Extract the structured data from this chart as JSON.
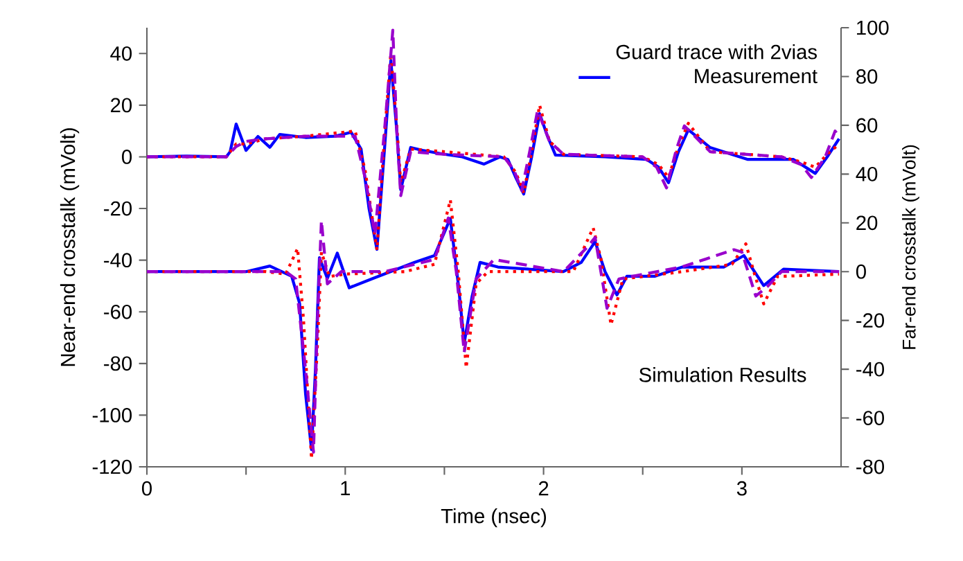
{
  "chart_data": {
    "type": "line",
    "xlabel": "Time (nsec)",
    "ylabel": "Near-end crosstalk (mVolt)",
    "y2label": "Far-end crosstalk (mVolt)",
    "legend_title": "Guard trace with 2vias",
    "legend": "top right",
    "marker": "none",
    "annotations": [
      "Simulation Results"
    ],
    "xlim": [
      0,
      3.5
    ],
    "xticks": [
      0,
      {
        "value": 0.5,
        "label": null
      },
      1,
      {
        "value": 1.5,
        "label": null
      },
      2,
      {
        "value": 2.5,
        "label": null
      },
      3
    ],
    "ylim": [
      -120,
      50
    ],
    "yticks": [
      -120,
      -100,
      -80,
      -60,
      -40,
      -20,
      0,
      20,
      40
    ],
    "y2lim": [
      -80,
      100
    ],
    "y2ticks": [
      -80,
      -60,
      -40,
      -20,
      0,
      20,
      40,
      60,
      80,
      100
    ],
    "series": [
      {
        "name": "Measurement",
        "color": "#0000ff",
        "line_style": "solid",
        "axis": "y",
        "x": [
          0,
          0.2,
          0.4,
          0.42,
          0.45,
          0.5,
          0.56,
          0.62,
          0.67,
          0.8,
          0.95,
          1.03,
          1.08,
          1.12,
          1.16,
          1.2,
          1.23,
          1.26,
          1.28,
          1.33,
          1.39,
          1.5,
          1.59,
          1.7,
          1.78,
          1.82,
          1.86,
          1.9,
          1.94,
          1.98,
          2.02,
          2.06,
          2.31,
          2.52,
          2.58,
          2.63,
          2.68,
          2.73,
          2.84,
          3.03,
          3.26,
          3.37,
          3.43,
          3.49
        ],
        "values": [
          0,
          0.3,
          0,
          2,
          12.7,
          2.5,
          7.9,
          3.7,
          8.7,
          7.5,
          8,
          9.5,
          3,
          -20,
          -35.8,
          5,
          37.3,
          10,
          -12.7,
          3.6,
          2.5,
          1,
          0,
          -2.8,
          0,
          -1,
          -8,
          -14.4,
          0,
          16.7,
          8,
          0.7,
          0,
          -1,
          -4,
          -10,
          2,
          10.5,
          3.6,
          -1,
          -1,
          -6.4,
          0,
          7
        ]
      },
      {
        "color": "#ff0000",
        "line_style": "dotted",
        "axis": "y",
        "x": [
          0,
          0.4,
          0.45,
          0.5,
          0.6,
          0.8,
          1.05,
          1.1,
          1.16,
          1.2,
          1.23,
          1.26,
          1.28,
          1.33,
          1.5,
          1.8,
          1.86,
          1.9,
          1.94,
          1.98,
          2.03,
          2.1,
          2.5,
          2.58,
          2.63,
          2.68,
          2.73,
          2.84,
          3.2,
          3.3,
          3.37,
          3.43,
          3.49
        ],
        "values": [
          0,
          0,
          5,
          5,
          7,
          8,
          10,
          -5,
          -36,
          10,
          40,
          12,
          -10,
          3,
          2,
          0,
          -6,
          -14,
          2,
          20,
          6,
          1,
          0,
          -3,
          -8,
          4,
          13,
          2,
          0,
          -2,
          -4,
          1,
          5
        ]
      },
      {
        "color": "#9900cc",
        "line_style": "dashed",
        "axis": "y",
        "x": [
          0,
          0.4,
          0.45,
          0.5,
          0.6,
          0.8,
          1.05,
          1.1,
          1.15,
          1.2,
          1.24,
          1.26,
          1.28,
          1.33,
          1.5,
          1.8,
          1.85,
          1.89,
          1.93,
          1.97,
          2.03,
          2.1,
          2.5,
          2.57,
          2.62,
          2.67,
          2.71,
          2.84,
          3.2,
          3.3,
          3.35,
          3.42,
          3.47,
          3.49
        ],
        "values": [
          0,
          0,
          4,
          6,
          7,
          8,
          8,
          -8,
          -30,
          12,
          49,
          10,
          -15,
          2,
          1,
          0,
          -5,
          -13,
          2,
          18,
          6,
          1,
          0,
          -4,
          -12,
          3,
          12,
          2,
          0,
          -3,
          -8,
          0,
          10,
          8
        ]
      },
      {
        "color": "#0000ff",
        "line_style": "solid",
        "axis": "y2",
        "x": [
          0,
          0.5,
          0.62,
          0.73,
          0.77,
          0.8,
          0.83,
          0.85,
          0.87,
          0.91,
          0.96,
          1.02,
          1.14,
          1.35,
          1.45,
          1.53,
          1.57,
          1.6,
          1.64,
          1.68,
          1.77,
          2.1,
          2.19,
          2.26,
          2.31,
          2.37,
          2.42,
          2.56,
          2.7,
          2.91,
          3.01,
          3.11,
          3.21,
          3.49
        ],
        "values": [
          0,
          0,
          2.3,
          -1.9,
          -13,
          -50,
          -72.9,
          -40,
          5.7,
          -2.8,
          7.6,
          -6.6,
          -2.8,
          3.8,
          6.6,
          21.8,
          -5,
          -29.3,
          -10,
          3.8,
          1.9,
          0,
          3.8,
          12.3,
          0,
          -9.5,
          -1.9,
          -1.9,
          1.9,
          1.9,
          6.6,
          -5.7,
          1,
          0
        ]
      },
      {
        "color": "#ff0000",
        "line_style": "dotted",
        "axis": "y2",
        "x": [
          0,
          0.6,
          0.7,
          0.76,
          0.79,
          0.83,
          0.86,
          0.88,
          0.92,
          1.0,
          1.3,
          1.45,
          1.53,
          1.57,
          1.61,
          1.66,
          1.72,
          2.15,
          2.25,
          2.29,
          2.34,
          2.4,
          2.7,
          2.95,
          3.02,
          3.06,
          3.11,
          3.18,
          3.49
        ],
        "values": [
          0,
          0,
          -1,
          9.5,
          -20,
          -76.7,
          -30,
          8,
          -2,
          -1,
          0,
          3,
          29.4,
          0,
          -39.4,
          -5,
          0,
          0,
          18,
          5,
          -21.8,
          -3,
          0,
          3,
          11.4,
          0,
          -13.2,
          -2,
          -1
        ]
      },
      {
        "color": "#9900cc",
        "line_style": "dashed",
        "axis": "y2",
        "x": [
          0,
          0.7,
          0.75,
          0.8,
          0.84,
          0.86,
          0.88,
          0.91,
          0.98,
          1.2,
          1.45,
          1.52,
          1.56,
          1.6,
          1.66,
          1.75,
          2.1,
          2.22,
          2.26,
          2.32,
          2.38,
          2.7,
          2.96,
          3.0,
          3.07,
          3.13,
          3.2,
          3.49
        ],
        "values": [
          0,
          0,
          -3,
          -40,
          -74,
          -20,
          20.9,
          -5,
          0,
          0,
          5,
          22,
          0,
          -33,
          -3,
          5,
          0,
          10,
          14,
          -15,
          -3,
          2,
          9,
          8,
          -10,
          -6,
          0,
          0
        ]
      }
    ]
  }
}
